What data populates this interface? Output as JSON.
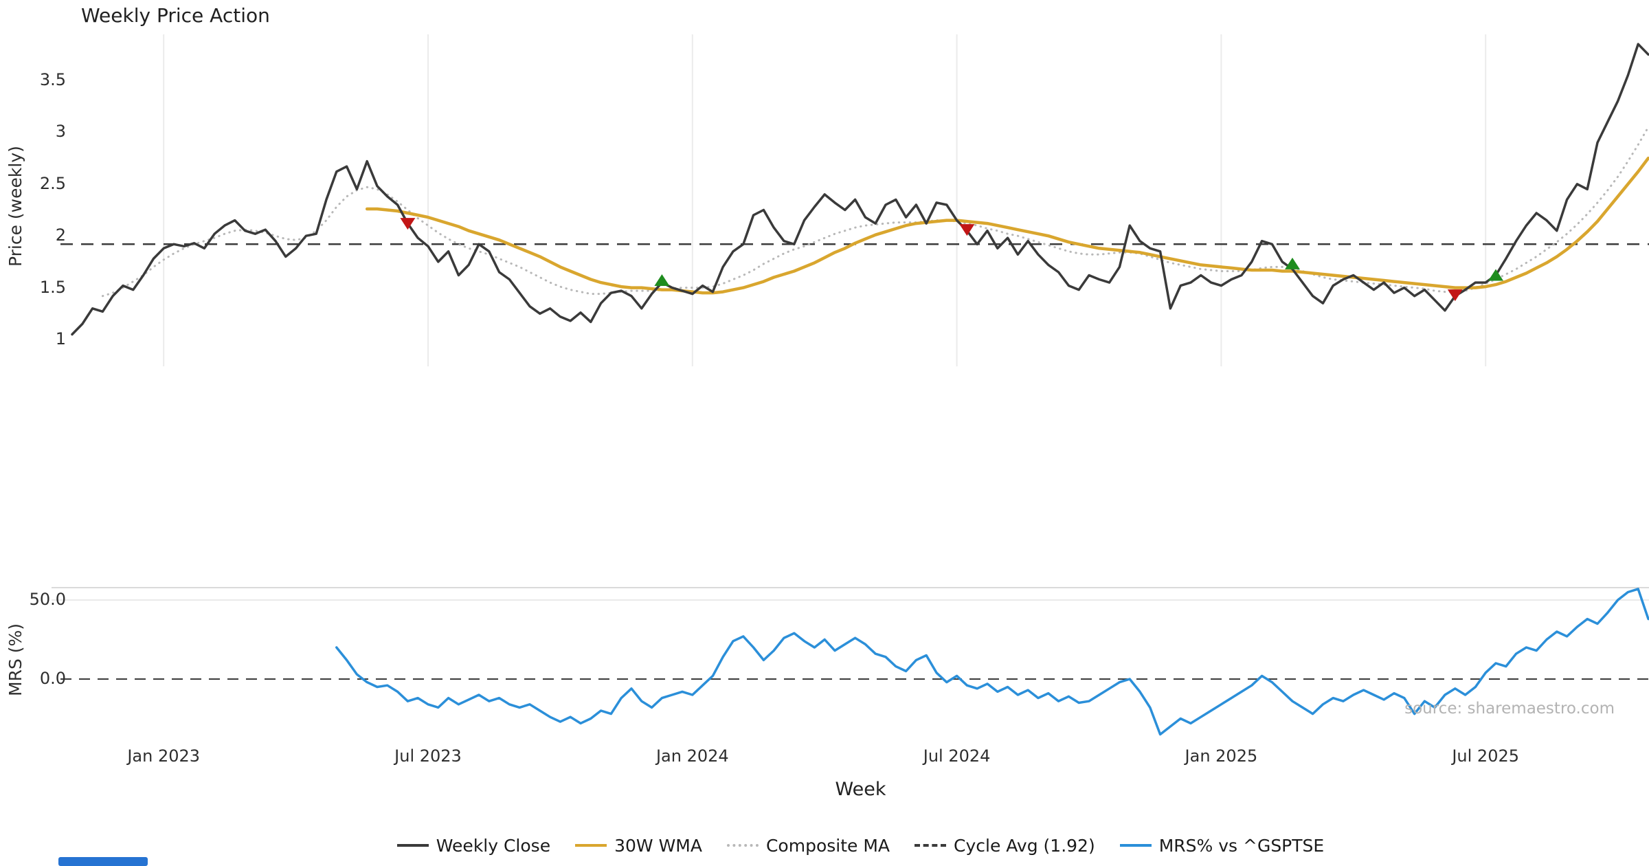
{
  "title": "Weekly Price Action",
  "source_note": "source: sharemaestro.com",
  "axes": {
    "xlabel": "Week",
    "price_ylabel": "Price (weekly)",
    "mrs_ylabel": "MRS (%)",
    "price_ticks": [
      {
        "value": 1,
        "label": "1"
      },
      {
        "value": 1.5,
        "label": "1.5"
      },
      {
        "value": 2,
        "label": "2"
      },
      {
        "value": 2.5,
        "label": "2.5"
      },
      {
        "value": 3,
        "label": "3"
      },
      {
        "value": 3.5,
        "label": "3.5"
      }
    ],
    "mrs_ticks": [
      {
        "value": 0,
        "label": "0.0"
      },
      {
        "value": 50,
        "label": "50.0"
      }
    ],
    "x_ticks": [
      {
        "week": 9,
        "label": "Jan 2023"
      },
      {
        "week": 35,
        "label": "Jul 2023"
      },
      {
        "week": 61,
        "label": "Jan 2024"
      },
      {
        "week": 87,
        "label": "Jul 2024"
      },
      {
        "week": 113,
        "label": "Jan 2025"
      },
      {
        "week": 139,
        "label": "Jul 2025"
      }
    ]
  },
  "colors": {
    "weekly_close": "#3a3a3a",
    "wma30": "#d9a62e",
    "composite_ma": "#b8b8b8",
    "cycle_avg": "#3b3b3b",
    "mrs": "#2b8fd9",
    "sell_marker": "#c21616",
    "buy_marker": "#1e8c1e",
    "grid": "#ebebeb"
  },
  "legend": [
    {
      "label": "Weekly Close",
      "style": "solid",
      "color": "#3a3a3a"
    },
    {
      "label": "30W WMA",
      "style": "solid",
      "color": "#d9a62e"
    },
    {
      "label": "Composite MA",
      "style": "dotted",
      "color": "#b8b8b8"
    },
    {
      "label": "Cycle Avg (1.92)",
      "style": "dashed",
      "color": "#3b3b3b"
    },
    {
      "label": "MRS% vs ^GSPTSE",
      "style": "solid",
      "color": "#2b8fd9"
    }
  ],
  "chart_data": [
    {
      "type": "line",
      "panel": "price",
      "title": "Weekly Price Action",
      "xlabel": "Week",
      "ylabel": "Price (weekly)",
      "ylim": [
        0.95,
        3.95
      ],
      "x_unit": "weekly index, week 0 = approx Nov 2022, week 155 = approx Nov 2025",
      "grid": "vertical gridlines at each Jan/Jul tick",
      "legend_position": "bottom-center",
      "cycle_avg_value": 1.92,
      "series": [
        {
          "name": "Weekly Close",
          "style": "solid",
          "color": "#3a3a3a",
          "start_week": 0,
          "values": [
            1.05,
            1.15,
            1.3,
            1.27,
            1.42,
            1.52,
            1.48,
            1.62,
            1.78,
            1.88,
            1.92,
            1.9,
            1.93,
            1.88,
            2.02,
            2.1,
            2.15,
            2.05,
            2.02,
            2.06,
            1.95,
            1.8,
            1.88,
            2.0,
            2.02,
            2.35,
            2.62,
            2.67,
            2.45,
            2.72,
            2.48,
            2.38,
            2.3,
            2.12,
            1.98,
            1.9,
            1.75,
            1.85,
            1.62,
            1.72,
            1.92,
            1.85,
            1.65,
            1.58,
            1.45,
            1.32,
            1.25,
            1.3,
            1.22,
            1.18,
            1.26,
            1.17,
            1.35,
            1.45,
            1.47,
            1.42,
            1.3,
            1.44,
            1.55,
            1.5,
            1.47,
            1.44,
            1.52,
            1.46,
            1.7,
            1.85,
            1.92,
            2.2,
            2.25,
            2.08,
            1.95,
            1.92,
            2.15,
            2.28,
            2.4,
            2.32,
            2.25,
            2.35,
            2.18,
            2.12,
            2.3,
            2.35,
            2.18,
            2.3,
            2.12,
            2.32,
            2.3,
            2.15,
            2.05,
            1.92,
            2.05,
            1.88,
            1.98,
            1.82,
            1.95,
            1.82,
            1.72,
            1.65,
            1.52,
            1.48,
            1.62,
            1.58,
            1.55,
            1.7,
            2.1,
            1.95,
            1.88,
            1.85,
            1.3,
            1.52,
            1.55,
            1.62,
            1.55,
            1.52,
            1.58,
            1.62,
            1.75,
            1.95,
            1.92,
            1.75,
            1.68,
            1.55,
            1.42,
            1.35,
            1.52,
            1.58,
            1.62,
            1.55,
            1.48,
            1.55,
            1.45,
            1.5,
            1.42,
            1.48,
            1.38,
            1.28,
            1.42,
            1.48,
            1.55,
            1.55,
            1.62,
            1.78,
            1.95,
            2.1,
            2.22,
            2.15,
            2.05,
            2.35,
            2.5,
            2.45,
            2.9,
            3.1,
            3.3,
            3.55,
            3.85,
            3.75
          ]
        },
        {
          "name": "30W WMA",
          "style": "solid",
          "color": "#d9a62e",
          "start_week": 29,
          "values": [
            2.26,
            2.26,
            2.25,
            2.24,
            2.22,
            2.2,
            2.18,
            2.15,
            2.12,
            2.09,
            2.05,
            2.02,
            1.99,
            1.96,
            1.92,
            1.88,
            1.84,
            1.8,
            1.75,
            1.7,
            1.66,
            1.62,
            1.58,
            1.55,
            1.53,
            1.51,
            1.5,
            1.5,
            1.49,
            1.48,
            1.48,
            1.47,
            1.46,
            1.45,
            1.45,
            1.46,
            1.48,
            1.5,
            1.53,
            1.56,
            1.6,
            1.63,
            1.66,
            1.7,
            1.74,
            1.79,
            1.84,
            1.88,
            1.93,
            1.97,
            2.01,
            2.04,
            2.07,
            2.1,
            2.12,
            2.13,
            2.14,
            2.15,
            2.15,
            2.14,
            2.13,
            2.12,
            2.1,
            2.08,
            2.06,
            2.04,
            2.02,
            2.0,
            1.97,
            1.94,
            1.92,
            1.9,
            1.88,
            1.87,
            1.86,
            1.85,
            1.84,
            1.82,
            1.8,
            1.78,
            1.76,
            1.74,
            1.72,
            1.71,
            1.7,
            1.69,
            1.68,
            1.67,
            1.67,
            1.67,
            1.66,
            1.66,
            1.65,
            1.64,
            1.63,
            1.62,
            1.61,
            1.6,
            1.59,
            1.58,
            1.57,
            1.56,
            1.55,
            1.54,
            1.53,
            1.52,
            1.51,
            1.5,
            1.5,
            1.5,
            1.51,
            1.53,
            1.56,
            1.6,
            1.64,
            1.69,
            1.74,
            1.8,
            1.87,
            1.95,
            2.04,
            2.14,
            2.26,
            2.38,
            2.5,
            2.62,
            2.75
          ]
        },
        {
          "name": "Composite MA",
          "style": "dotted",
          "color": "#b8b8b8",
          "start_week": 3,
          "values": [
            1.42,
            1.45,
            1.5,
            1.56,
            1.62,
            1.7,
            1.77,
            1.83,
            1.88,
            1.92,
            1.95,
            1.98,
            2.02,
            2.05,
            2.06,
            2.05,
            2.03,
            2.0,
            1.97,
            1.96,
            1.98,
            2.05,
            2.15,
            2.28,
            2.38,
            2.44,
            2.47,
            2.45,
            2.4,
            2.33,
            2.25,
            2.17,
            2.1,
            2.03,
            1.97,
            1.92,
            1.88,
            1.85,
            1.82,
            1.78,
            1.74,
            1.7,
            1.65,
            1.6,
            1.55,
            1.51,
            1.48,
            1.46,
            1.44,
            1.44,
            1.45,
            1.46,
            1.47,
            1.47,
            1.47,
            1.48,
            1.49,
            1.5,
            1.5,
            1.5,
            1.51,
            1.54,
            1.58,
            1.62,
            1.67,
            1.73,
            1.78,
            1.83,
            1.87,
            1.9,
            1.94,
            1.98,
            2.02,
            2.05,
            2.08,
            2.1,
            2.11,
            2.12,
            2.13,
            2.13,
            2.13,
            2.14,
            2.15,
            2.15,
            2.14,
            2.12,
            2.1,
            2.07,
            2.05,
            2.02,
            2.0,
            1.97,
            1.94,
            1.91,
            1.88,
            1.85,
            1.83,
            1.82,
            1.82,
            1.83,
            1.84,
            1.84,
            1.83,
            1.8,
            1.77,
            1.74,
            1.72,
            1.7,
            1.68,
            1.67,
            1.66,
            1.66,
            1.66,
            1.67,
            1.69,
            1.7,
            1.7,
            1.69,
            1.66,
            1.63,
            1.6,
            1.58,
            1.57,
            1.56,
            1.55,
            1.54,
            1.53,
            1.52,
            1.51,
            1.5,
            1.49,
            1.47,
            1.46,
            1.46,
            1.47,
            1.5,
            1.54,
            1.58,
            1.63,
            1.68,
            1.74,
            1.8,
            1.87,
            1.94,
            2.02,
            2.11,
            2.21,
            2.32,
            2.44,
            2.57,
            2.72,
            2.88,
            3.05
          ]
        },
        {
          "name": "Cycle Avg",
          "style": "dashed",
          "color": "#3b3b3b",
          "constant": 1.92
        }
      ],
      "signals": {
        "sell": [
          {
            "week": 33,
            "price": 2.12
          },
          {
            "week": 88,
            "price": 2.06
          },
          {
            "week": 136,
            "price": 1.43
          }
        ],
        "buy": [
          {
            "week": 58,
            "price": 1.57
          },
          {
            "week": 120,
            "price": 1.73
          },
          {
            "week": 140,
            "price": 1.62
          }
        ]
      }
    },
    {
      "type": "line",
      "panel": "mrs",
      "ylabel": "MRS (%)",
      "ylim": [
        -42,
        62
      ],
      "zero_line": "dashed",
      "series": [
        {
          "name": "MRS% vs ^GSPTSE",
          "style": "solid",
          "color": "#2b8fd9",
          "start_week": 26,
          "values": [
            20,
            12,
            3,
            -2,
            -5,
            -4,
            -8,
            -14,
            -12,
            -16,
            -18,
            -12,
            -16,
            -13,
            -10,
            -14,
            -12,
            -16,
            -18,
            -16,
            -20,
            -24,
            -27,
            -24,
            -28,
            -25,
            -20,
            -22,
            -12,
            -6,
            -14,
            -18,
            -12,
            -10,
            -8,
            -10,
            -4,
            2,
            14,
            24,
            27,
            20,
            12,
            18,
            26,
            29,
            24,
            20,
            25,
            18,
            22,
            26,
            22,
            16,
            14,
            8,
            5,
            12,
            15,
            4,
            -2,
            2,
            -4,
            -6,
            -3,
            -8,
            -5,
            -10,
            -7,
            -12,
            -9,
            -14,
            -11,
            -15,
            -14,
            -10,
            -6,
            -2,
            0,
            -8,
            -18,
            -35,
            -30,
            -25,
            -28,
            -24,
            -20,
            -16,
            -12,
            -8,
            -4,
            2,
            -2,
            -8,
            -14,
            -18,
            -22,
            -16,
            -12,
            -14,
            -10,
            -7,
            -10,
            -13,
            -9,
            -12,
            -22,
            -14,
            -18,
            -10,
            -6,
            -10,
            -5,
            4,
            10,
            8,
            16,
            20,
            18,
            25,
            30,
            27,
            33,
            38,
            35,
            42,
            50,
            55,
            57,
            38
          ]
        }
      ]
    }
  ]
}
